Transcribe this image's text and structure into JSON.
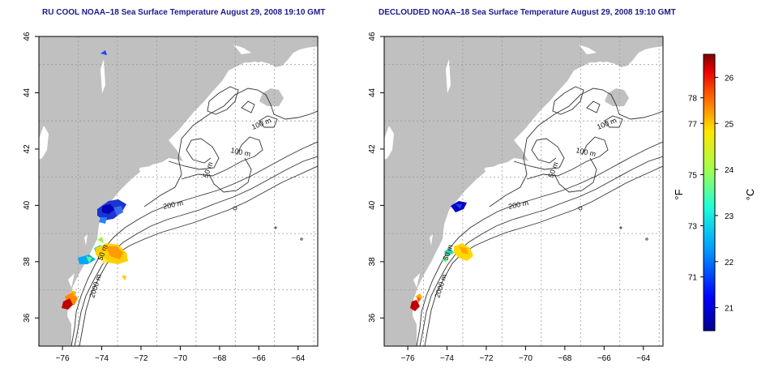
{
  "titles": {
    "left": "RU COOL NOAA–18 Sea Surface Temperature August 29, 2008 19:10 GMT",
    "right": "DECLOUDED NOAA–18 Sea Surface Temperature August 29, 2008 19:10 GMT"
  },
  "axes": {
    "lon_ticks": [
      -76,
      -74,
      -72,
      -70,
      -68,
      -66,
      -64
    ],
    "lat_ticks": [
      36,
      38,
      40,
      42,
      44,
      46
    ],
    "lon_labels": [
      "−76",
      "−74",
      "−72",
      "−70",
      "−68",
      "−66",
      "−64"
    ],
    "lat_labels": [
      "36",
      "38",
      "40",
      "42",
      "44",
      "46"
    ],
    "lon_range": [
      -77.2,
      -63.0
    ],
    "lat_range": [
      35.0,
      46.0
    ]
  },
  "contour_labels": {
    "m100a": "100 m",
    "m100b": "100 m",
    "m50": "50 m",
    "m200": "200 m",
    "m2000": "2000 m"
  },
  "colorbar": {
    "unit_f": "°F",
    "unit_c": "°C",
    "f_ticks": [
      "71",
      "73",
      "75",
      "77",
      "78"
    ],
    "c_ticks": [
      "21",
      "22",
      "23",
      "24",
      "25",
      "26"
    ],
    "celsius_range": [
      20.5,
      26.5
    ]
  },
  "colors": {
    "land": "#c0c0c0",
    "title": "#1a1a8c",
    "grid": "#9a9a9a",
    "contour": "#333333"
  }
}
